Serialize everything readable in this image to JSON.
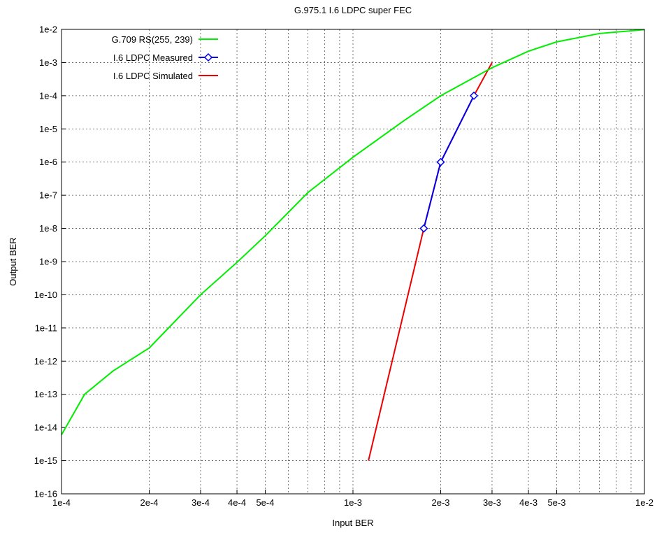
{
  "chart_data": {
    "type": "line",
    "title": "G.975.1 I.6 LDPC super FEC",
    "xlabel": "Input BER",
    "ylabel": "Output BER",
    "xscale": "log",
    "yscale": "log",
    "xlim": [
      0.0001,
      0.01
    ],
    "ylim": [
      1e-16,
      0.01
    ],
    "grid": true,
    "legend_position": "top-left",
    "x_ticks": [
      {
        "value": 0.0001,
        "label": "1e-4"
      },
      {
        "value": 0.0002,
        "label": "2e-4"
      },
      {
        "value": 0.0003,
        "label": "3e-4"
      },
      {
        "value": 0.0004,
        "label": "4e-4"
      },
      {
        "value": 0.0005,
        "label": "5e-4"
      },
      {
        "value": 0.001,
        "label": "1e-3"
      },
      {
        "value": 0.002,
        "label": "2e-3"
      },
      {
        "value": 0.003,
        "label": "3e-3"
      },
      {
        "value": 0.004,
        "label": "4e-3"
      },
      {
        "value": 0.005,
        "label": "5e-3"
      },
      {
        "value": 0.01,
        "label": "1e-2"
      }
    ],
    "y_ticks": [
      {
        "value": 0.01,
        "label": "1e-2"
      },
      {
        "value": 0.001,
        "label": "1e-3"
      },
      {
        "value": 0.0001,
        "label": "1e-4"
      },
      {
        "value": 1e-05,
        "label": "1e-5"
      },
      {
        "value": 1e-06,
        "label": "1e-6"
      },
      {
        "value": 1e-07,
        "label": "1e-7"
      },
      {
        "value": 1e-08,
        "label": "1e-8"
      },
      {
        "value": 1e-09,
        "label": "1e-9"
      },
      {
        "value": 1e-10,
        "label": "1e-10"
      },
      {
        "value": 1e-11,
        "label": "1e-11"
      },
      {
        "value": 1e-12,
        "label": "1e-12"
      },
      {
        "value": 1e-13,
        "label": "1e-13"
      },
      {
        "value": 1e-14,
        "label": "1e-14"
      },
      {
        "value": 1e-15,
        "label": "1e-15"
      },
      {
        "value": 1e-16,
        "label": "1e-16"
      }
    ],
    "series": [
      {
        "name": "G.709 RS(255, 239)",
        "color": "#00ee00",
        "marker": "none",
        "x": [
          0.0001,
          0.00012,
          0.00015,
          0.0002,
          0.0003,
          0.0004,
          0.0005,
          0.0007,
          0.001,
          0.0015,
          0.002,
          0.003,
          0.004,
          0.005,
          0.007,
          0.01
        ],
        "y": [
          6e-15,
          1e-13,
          5e-13,
          2.5e-12,
          1e-10,
          9.5e-10,
          6e-09,
          1.2e-07,
          1.4e-06,
          1.8e-05,
          0.0001,
          0.0007,
          0.0022,
          0.0042,
          0.0075,
          0.0098
        ]
      },
      {
        "name": "I.6 LDPC Measured",
        "color": "#0000ee",
        "marker": "diamond",
        "x": [
          0.00175,
          0.002,
          0.0026
        ],
        "y": [
          1e-08,
          1e-06,
          0.0001
        ]
      },
      {
        "name": "I.6 LDPC Simulated",
        "color": "#ee0000",
        "marker": "none",
        "x": [
          0.00113,
          0.00175,
          0.002,
          0.0026,
          0.003
        ],
        "y": [
          1e-15,
          1e-08,
          1e-06,
          0.0001,
          0.001
        ]
      }
    ]
  }
}
